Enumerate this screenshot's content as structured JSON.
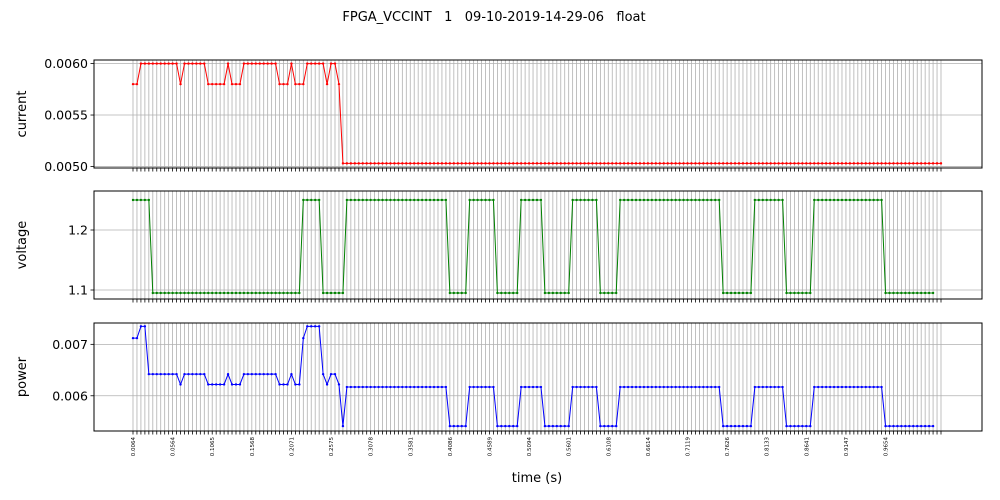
{
  "chart_data": {
    "type": "line",
    "title": "FPGA_VCCINT   1   09-10-2019-14-29-06   float",
    "xlabel": "time (s)",
    "x_tick_labels": [
      "0.0064",
      "0.0564",
      "0.1065",
      "0.1568",
      "0.2071",
      "0.2575",
      "0.3078",
      "0.3581",
      "0.4086",
      "0.4589",
      "0.5094",
      "0.5601",
      "0.6108",
      "0.6614",
      "0.7119",
      "0.7626",
      "0.8133",
      "0.8641",
      "0.9147",
      "0.9654"
    ],
    "grid": true,
    "panels": [
      {
        "ylabel": "current",
        "color": "#ff0000",
        "ylim": [
          0.004985,
          0.006035
        ],
        "yticks": [
          0.005,
          0.0055,
          0.006
        ],
        "ytick_labels": [
          "0.0050",
          "0.0055",
          "0.0060"
        ],
        "values": [
          0.0058,
          0.0058,
          0.006,
          0.006,
          0.006,
          0.006,
          0.006,
          0.006,
          0.006,
          0.006,
          0.006,
          0.006,
          0.0058,
          0.006,
          0.006,
          0.006,
          0.006,
          0.006,
          0.006,
          0.0058,
          0.0058,
          0.0058,
          0.0058,
          0.0058,
          0.006,
          0.0058,
          0.0058,
          0.0058,
          0.006,
          0.006,
          0.006,
          0.006,
          0.006,
          0.006,
          0.006,
          0.006,
          0.006,
          0.0058,
          0.0058,
          0.0058,
          0.006,
          0.0058,
          0.0058,
          0.0058,
          0.006,
          0.006,
          0.006,
          0.006,
          0.006,
          0.0058,
          0.006,
          0.006,
          0.0058,
          0.00503,
          0.00503,
          0.00503,
          0.00503,
          0.00503,
          0.00503,
          0.00503,
          0.00503,
          0.00503,
          0.00503,
          0.00503,
          0.00503,
          0.00503,
          0.00503,
          0.00503,
          0.00503,
          0.00503,
          0.00503,
          0.00503,
          0.00503,
          0.00503,
          0.00503,
          0.00503,
          0.00503,
          0.00503,
          0.00503,
          0.00503,
          0.00503,
          0.00503,
          0.00503,
          0.00503,
          0.00503,
          0.00503,
          0.00503,
          0.00503,
          0.00503,
          0.00503,
          0.00503,
          0.00503,
          0.00503,
          0.00503,
          0.00503,
          0.00503,
          0.00503,
          0.00503,
          0.00503,
          0.00503,
          0.00503,
          0.00503,
          0.00503,
          0.00503,
          0.00503,
          0.00503,
          0.00503,
          0.00503,
          0.00503,
          0.00503,
          0.00503,
          0.00503,
          0.00503,
          0.00503,
          0.00503,
          0.00503,
          0.00503,
          0.00503,
          0.00503,
          0.00503,
          0.00503,
          0.00503,
          0.00503,
          0.00503,
          0.00503,
          0.00503,
          0.00503,
          0.00503,
          0.00503,
          0.00503,
          0.00503,
          0.00503,
          0.00503,
          0.00503,
          0.00503,
          0.00503,
          0.00503,
          0.00503,
          0.00503,
          0.00503,
          0.00503,
          0.00503,
          0.00503,
          0.00503,
          0.00503,
          0.00503,
          0.00503,
          0.00503,
          0.00503,
          0.00503,
          0.00503,
          0.00503,
          0.00503,
          0.00503,
          0.00503,
          0.00503,
          0.00503,
          0.00503,
          0.00503,
          0.00503,
          0.00503,
          0.00503,
          0.00503,
          0.00503,
          0.00503,
          0.00503,
          0.00503,
          0.00503,
          0.00503,
          0.00503,
          0.00503,
          0.00503,
          0.00503,
          0.00503,
          0.00503,
          0.00503,
          0.00503,
          0.00503,
          0.00503,
          0.00503,
          0.00503,
          0.00503,
          0.00503,
          0.00503,
          0.00503,
          0.00503,
          0.00503,
          0.00503,
          0.00503,
          0.00503,
          0.00503,
          0.00503,
          0.00503,
          0.00503,
          0.00503,
          0.00503,
          0.00503,
          0.00503,
          0.00503,
          0.00503,
          0.00503,
          0.00503,
          0.00503,
          0.00503,
          0.00503
        ]
      },
      {
        "ylabel": "voltage",
        "color": "#008000",
        "ylim": [
          1.085,
          1.265
        ],
        "yticks": [
          1.1,
          1.2
        ],
        "ytick_labels": [
          "1.1",
          "1.2"
        ],
        "values": [
          1.25,
          1.25,
          1.25,
          1.25,
          1.25,
          1.095,
          1.095,
          1.095,
          1.095,
          1.095,
          1.095,
          1.095,
          1.095,
          1.095,
          1.095,
          1.095,
          1.095,
          1.095,
          1.095,
          1.095,
          1.095,
          1.095,
          1.095,
          1.095,
          1.095,
          1.095,
          1.095,
          1.095,
          1.095,
          1.095,
          1.095,
          1.095,
          1.095,
          1.095,
          1.095,
          1.095,
          1.095,
          1.095,
          1.095,
          1.095,
          1.095,
          1.095,
          1.095,
          1.25,
          1.25,
          1.25,
          1.25,
          1.25,
          1.095,
          1.095,
          1.095,
          1.095,
          1.095,
          1.095,
          1.25,
          1.25,
          1.25,
          1.25,
          1.25,
          1.25,
          1.25,
          1.25,
          1.25,
          1.25,
          1.25,
          1.25,
          1.25,
          1.25,
          1.25,
          1.25,
          1.25,
          1.25,
          1.25,
          1.25,
          1.25,
          1.25,
          1.25,
          1.25,
          1.25,
          1.25,
          1.095,
          1.095,
          1.095,
          1.095,
          1.095,
          1.25,
          1.25,
          1.25,
          1.25,
          1.25,
          1.25,
          1.25,
          1.095,
          1.095,
          1.095,
          1.095,
          1.095,
          1.095,
          1.25,
          1.25,
          1.25,
          1.25,
          1.25,
          1.25,
          1.095,
          1.095,
          1.095,
          1.095,
          1.095,
          1.095,
          1.095,
          1.25,
          1.25,
          1.25,
          1.25,
          1.25,
          1.25,
          1.25,
          1.095,
          1.095,
          1.095,
          1.095,
          1.095,
          1.25,
          1.25,
          1.25,
          1.25,
          1.25,
          1.25,
          1.25,
          1.25,
          1.25,
          1.25,
          1.25,
          1.25,
          1.25,
          1.25,
          1.25,
          1.25,
          1.25,
          1.25,
          1.25,
          1.25,
          1.25,
          1.25,
          1.25,
          1.25,
          1.25,
          1.25,
          1.095,
          1.095,
          1.095,
          1.095,
          1.095,
          1.095,
          1.095,
          1.095,
          1.25,
          1.25,
          1.25,
          1.25,
          1.25,
          1.25,
          1.25,
          1.25,
          1.095,
          1.095,
          1.095,
          1.095,
          1.095,
          1.095,
          1.095,
          1.25,
          1.25,
          1.25,
          1.25,
          1.25,
          1.25,
          1.25,
          1.25,
          1.25,
          1.25,
          1.25,
          1.25,
          1.25,
          1.25,
          1.25,
          1.25,
          1.25,
          1.25,
          1.095,
          1.095,
          1.095,
          1.095,
          1.095,
          1.095,
          1.095,
          1.095,
          1.095,
          1.095,
          1.095,
          1.095,
          1.095
        ]
      },
      {
        "ylabel": "power",
        "color": "#0000ff",
        "ylim": [
          0.005315,
          0.007415
        ],
        "yticks": [
          0.006,
          0.007
        ],
        "ytick_labels": [
          "0.006",
          "0.007"
        ],
        "values": [
          0.00712,
          0.00712,
          0.00735,
          0.00735,
          0.00642,
          0.00642,
          0.00642,
          0.00642,
          0.00642,
          0.00642,
          0.00642,
          0.00642,
          0.00622,
          0.00642,
          0.00642,
          0.00642,
          0.00642,
          0.00642,
          0.00642,
          0.00622,
          0.00622,
          0.00622,
          0.00622,
          0.00622,
          0.00642,
          0.00622,
          0.00622,
          0.00622,
          0.00642,
          0.00642,
          0.00642,
          0.00642,
          0.00642,
          0.00642,
          0.00642,
          0.00642,
          0.00642,
          0.00622,
          0.00622,
          0.00622,
          0.00642,
          0.00622,
          0.00622,
          0.00712,
          0.00735,
          0.00735,
          0.00735,
          0.00735,
          0.00642,
          0.00622,
          0.00642,
          0.00642,
          0.00622,
          0.00541,
          0.00617,
          0.00617,
          0.00617,
          0.00617,
          0.00617,
          0.00617,
          0.00617,
          0.00617,
          0.00617,
          0.00617,
          0.00617,
          0.00617,
          0.00617,
          0.00617,
          0.00617,
          0.00617,
          0.00617,
          0.00617,
          0.00617,
          0.00617,
          0.00617,
          0.00617,
          0.00617,
          0.00617,
          0.00617,
          0.00617,
          0.00541,
          0.00541,
          0.00541,
          0.00541,
          0.00541,
          0.00617,
          0.00617,
          0.00617,
          0.00617,
          0.00617,
          0.00617,
          0.00617,
          0.00541,
          0.00541,
          0.00541,
          0.00541,
          0.00541,
          0.00541,
          0.00617,
          0.00617,
          0.00617,
          0.00617,
          0.00617,
          0.00617,
          0.00541,
          0.00541,
          0.00541,
          0.00541,
          0.00541,
          0.00541,
          0.00541,
          0.00617,
          0.00617,
          0.00617,
          0.00617,
          0.00617,
          0.00617,
          0.00617,
          0.00541,
          0.00541,
          0.00541,
          0.00541,
          0.00541,
          0.00617,
          0.00617,
          0.00617,
          0.00617,
          0.00617,
          0.00617,
          0.00617,
          0.00617,
          0.00617,
          0.00617,
          0.00617,
          0.00617,
          0.00617,
          0.00617,
          0.00617,
          0.00617,
          0.00617,
          0.00617,
          0.00617,
          0.00617,
          0.00617,
          0.00617,
          0.00617,
          0.00617,
          0.00617,
          0.00617,
          0.00541,
          0.00541,
          0.00541,
          0.00541,
          0.00541,
          0.00541,
          0.00541,
          0.00541,
          0.00617,
          0.00617,
          0.00617,
          0.00617,
          0.00617,
          0.00617,
          0.00617,
          0.00617,
          0.00541,
          0.00541,
          0.00541,
          0.00541,
          0.00541,
          0.00541,
          0.00541,
          0.00617,
          0.00617,
          0.00617,
          0.00617,
          0.00617,
          0.00617,
          0.00617,
          0.00617,
          0.00617,
          0.00617,
          0.00617,
          0.00617,
          0.00617,
          0.00617,
          0.00617,
          0.00617,
          0.00617,
          0.00617,
          0.00541,
          0.00541,
          0.00541,
          0.00541,
          0.00541,
          0.00541,
          0.00541,
          0.00541,
          0.00541,
          0.00541,
          0.00541,
          0.00541,
          0.00541
        ]
      }
    ]
  }
}
